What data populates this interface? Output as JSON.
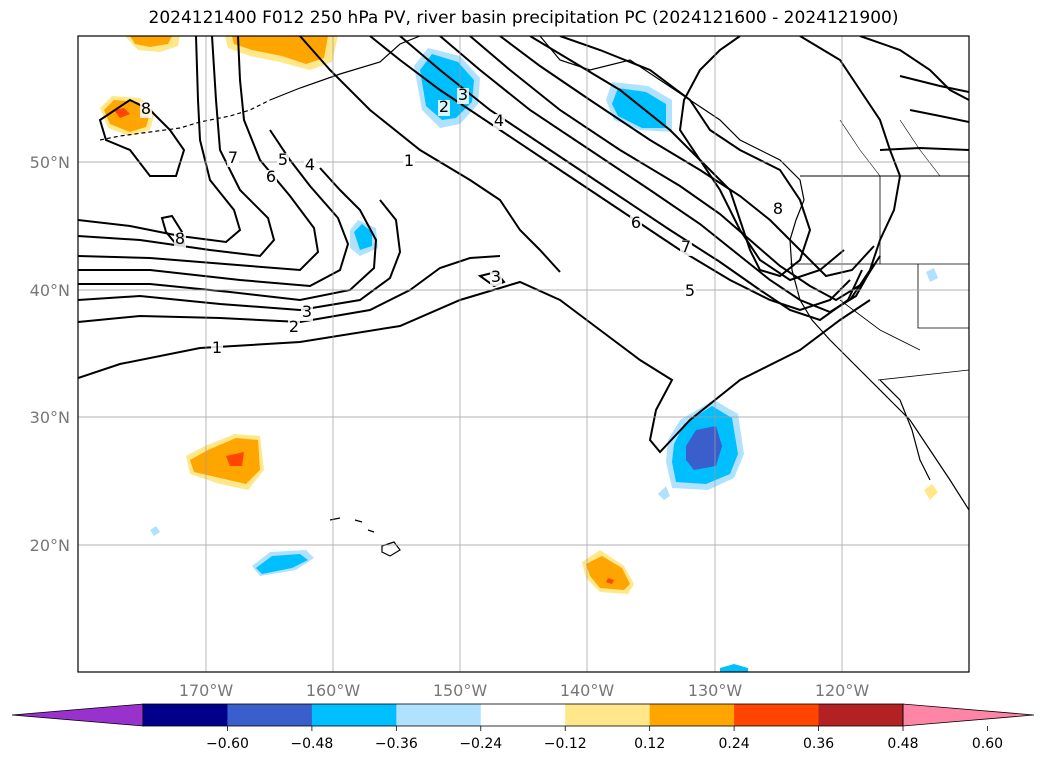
{
  "title": "2024121400 F012 250 hPa PV, river basin precipitation PC (2024121600 - 2024121900)",
  "map": {
    "lat_labels": [
      "50°N",
      "40°N",
      "30°N",
      "20°N"
    ],
    "lon_labels": [
      "170°W",
      "160°W",
      "150°W",
      "140°W",
      "130°W",
      "120°W"
    ],
    "grid": true,
    "contour_labels": [
      "1",
      "2",
      "3",
      "4",
      "5",
      "6",
      "7",
      "8"
    ],
    "contour_color": "#000000"
  },
  "colorbar": {
    "ticks": [
      "−0.60",
      "−0.48",
      "−0.36",
      "−0.24",
      "−0.12",
      "0.12",
      "0.24",
      "0.36",
      "0.48",
      "0.60"
    ],
    "colors": [
      "#9932cc",
      "#00008b",
      "#3a5fcd",
      "#00bfff",
      "#b0e2ff",
      "#ffffff",
      "#ffe78a",
      "#ffa500",
      "#ff4500",
      "#b22222",
      "#ff85a7"
    ]
  }
}
